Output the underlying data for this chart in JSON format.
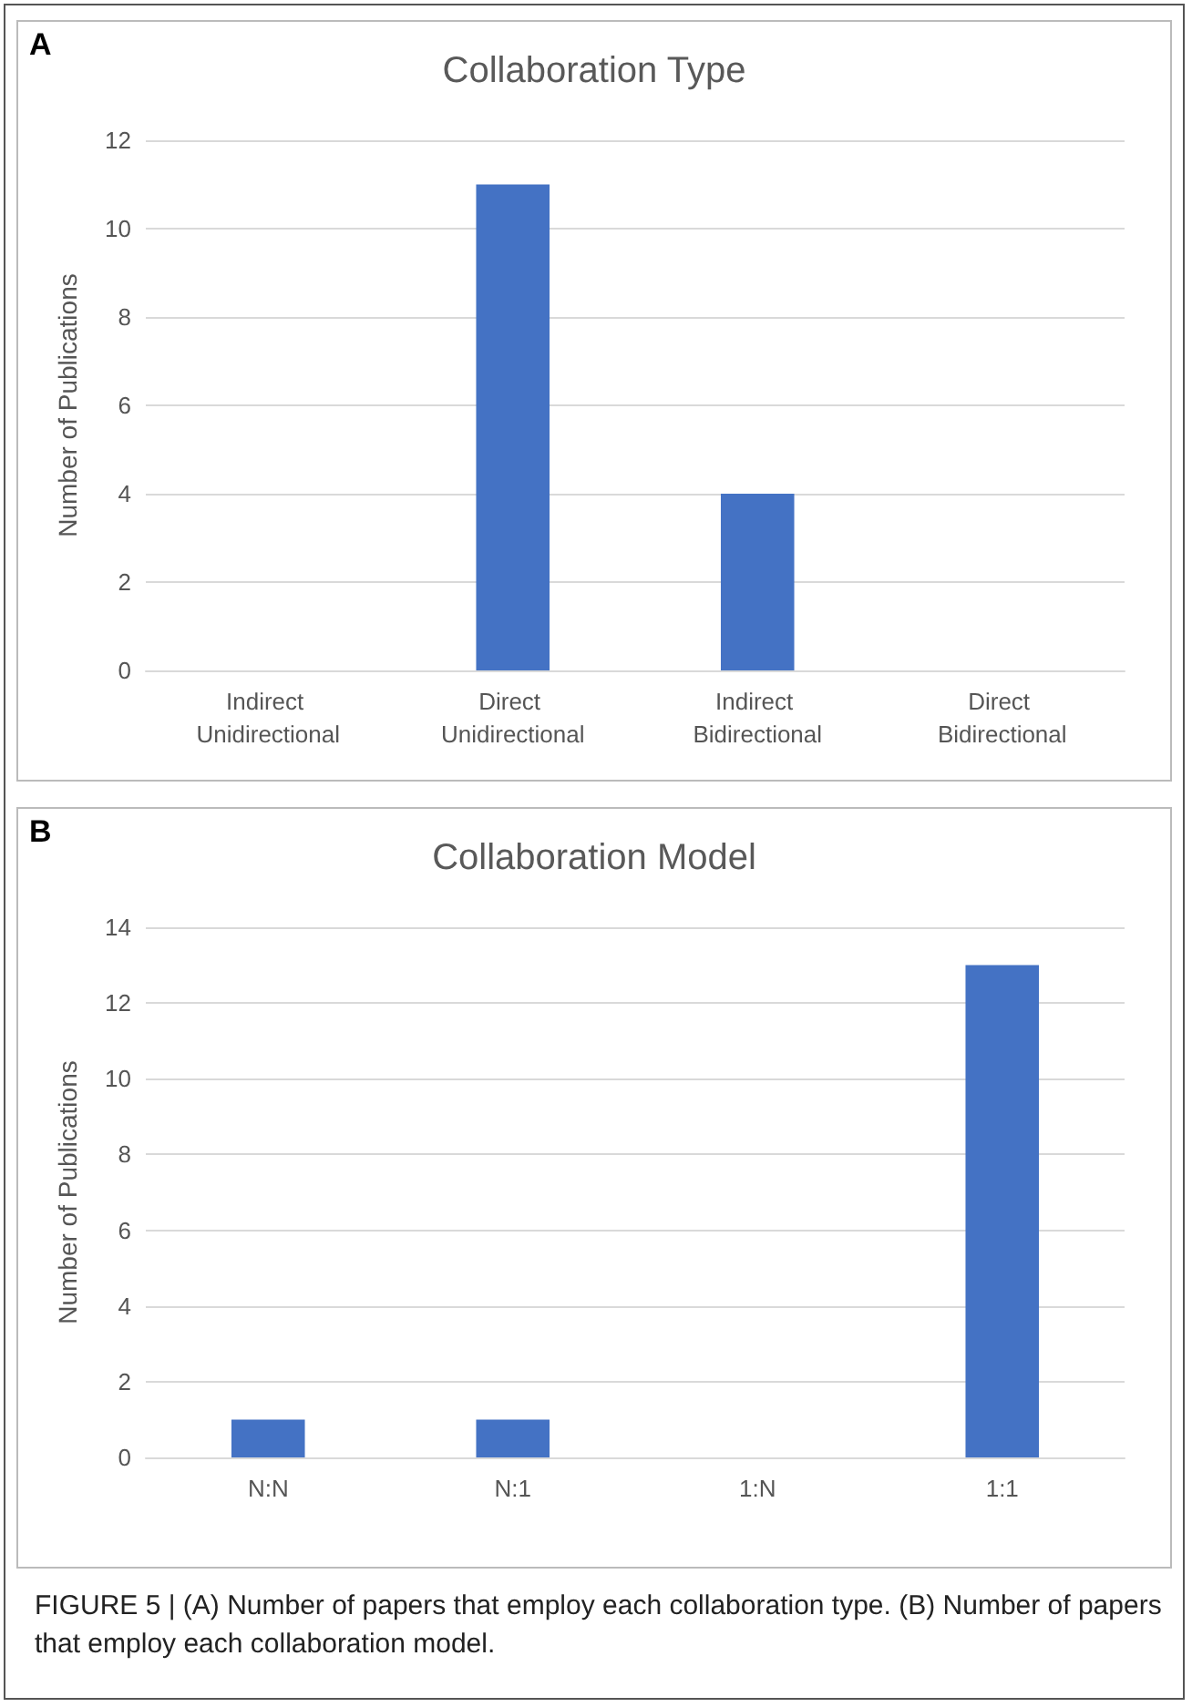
{
  "chart_data": [
    {
      "type": "bar",
      "title": "Collaboration Type",
      "ylabel": "Number of Publications",
      "categories": [
        "Indirect Unidirectional",
        "Direct Unidirectional",
        "Indirect Bidirectional",
        "Direct Bidirectional"
      ],
      "values": [
        0,
        11,
        4,
        0
      ],
      "color": "#4472c4",
      "ylim": [
        0,
        12
      ],
      "yticks": [
        0,
        2,
        4,
        6,
        8,
        10,
        12
      ],
      "grid": "y",
      "annotations": [
        "A"
      ]
    },
    {
      "type": "bar",
      "title": "Collaboration Model",
      "ylabel": "Number of Publications",
      "categories": [
        "N:N",
        "N:1",
        "1:N",
        "1:1"
      ],
      "values": [
        1,
        1,
        0,
        13
      ],
      "color": "#4472c4",
      "ylim": [
        0,
        14
      ],
      "yticks": [
        0,
        2,
        4,
        6,
        8,
        10,
        12,
        14
      ],
      "grid": "y",
      "annotations": [
        "B",
        "FIGURE 5 | (A) Number of papers that employ each collaboration type. (B) Number of papers that employ each collaboration model."
      ]
    }
  ]
}
